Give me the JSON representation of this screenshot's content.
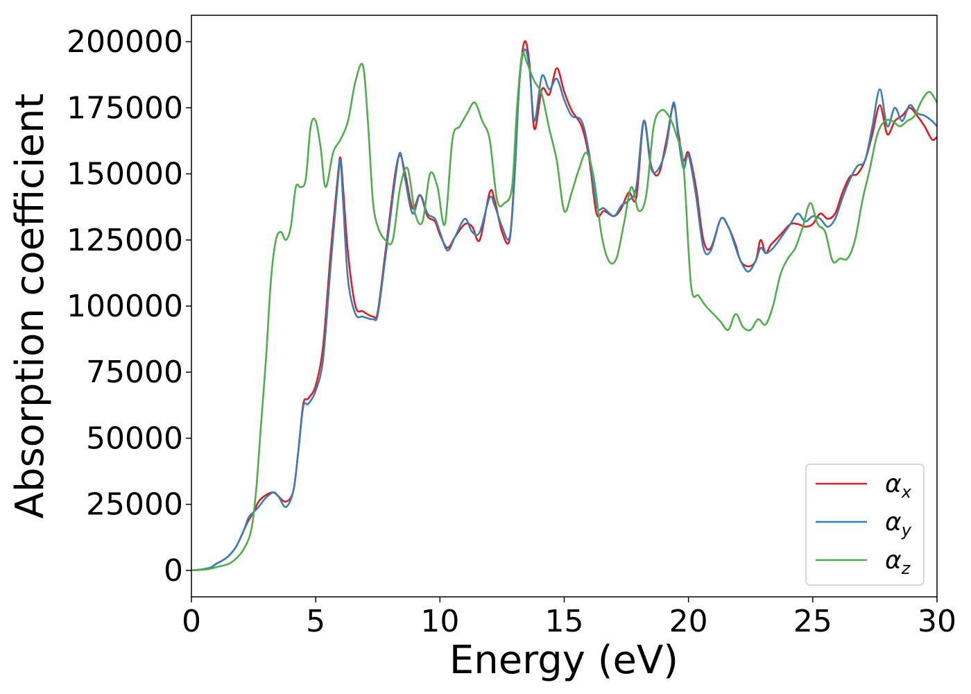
{
  "chart_data": {
    "type": "line",
    "title": "",
    "xlabel": "Energy (eV)",
    "ylabel": "Absorption coefficient",
    "xlim": [
      0,
      30
    ],
    "ylim": [
      -10000,
      210000
    ],
    "xticks": [
      0,
      5,
      10,
      15,
      20,
      25,
      30
    ],
    "xtick_labels": [
      "0",
      "5",
      "10",
      "15",
      "20",
      "25",
      "30"
    ],
    "yticks": [
      0,
      25000,
      50000,
      75000,
      100000,
      125000,
      150000,
      175000,
      200000
    ],
    "ytick_labels": [
      "0",
      "25000",
      "50000",
      "75000",
      "100000",
      "125000",
      "150000",
      "175000",
      "200000"
    ],
    "grid": false,
    "legend_position": "lower-right",
    "series": [
      {
        "name": "α_x",
        "label_main": "α",
        "label_sub": "x",
        "color": "#e41a1c",
        "x": [
          0,
          0.5,
          0.8,
          1.0,
          1.2,
          1.5,
          1.8,
          2.1,
          2.3,
          2.5,
          2.7,
          3.0,
          3.3,
          3.5,
          3.8,
          4.1,
          4.3,
          4.5,
          4.7,
          5.0,
          5.3,
          5.6,
          5.9,
          6.0,
          6.1,
          6.3,
          6.6,
          6.9,
          7.3,
          7.5,
          7.8,
          8.2,
          8.4,
          8.6,
          8.9,
          9.2,
          9.5,
          9.8,
          10.0,
          10.3,
          10.6,
          11.0,
          11.3,
          11.6,
          12.0,
          12.2,
          12.5,
          12.8,
          13.0,
          13.2,
          13.4,
          13.6,
          13.8,
          14.1,
          14.4,
          14.7,
          15.0,
          15.3,
          15.7,
          16.0,
          16.3,
          16.6,
          17.0,
          17.3,
          17.6,
          17.9,
          18.2,
          18.5,
          18.8,
          19.1,
          19.4,
          19.6,
          19.8,
          20.0,
          20.3,
          20.6,
          20.9,
          21.3,
          21.6,
          21.9,
          22.1,
          22.4,
          22.7,
          22.9,
          23.1,
          23.3,
          23.5,
          23.8,
          24.1,
          24.4,
          24.7,
          25.0,
          25.3,
          25.6,
          25.9,
          26.2,
          26.5,
          26.8,
          27.1,
          27.4,
          27.7,
          28.0,
          28.3,
          28.6,
          28.9,
          29.2,
          29.5,
          29.8,
          30.0
        ],
        "y": [
          0,
          500,
          1200,
          2500,
          3500,
          5500,
          9000,
          15000,
          19000,
          22000,
          26000,
          28500,
          29500,
          28000,
          26000,
          30000,
          45000,
          63000,
          65000,
          70000,
          85000,
          120000,
          150000,
          156000,
          145000,
          120000,
          100000,
          98000,
          96000,
          98000,
          120000,
          150000,
          157000,
          150000,
          137000,
          142000,
          134000,
          132000,
          127000,
          122000,
          126000,
          131000,
          130000,
          125000,
          143000,
          140000,
          128000,
          125000,
          150000,
          185000,
          200000,
          192000,
          167000,
          182000,
          180000,
          190000,
          181000,
          174000,
          168000,
          156000,
          135000,
          136000,
          134000,
          137000,
          143000,
          141000,
          170000,
          153000,
          150000,
          162000,
          176000,
          165000,
          155000,
          158000,
          145000,
          125000,
          122000,
          133000,
          130000,
          123000,
          117000,
          115000,
          117000,
          125000,
          120000,
          123000,
          125000,
          128000,
          131000,
          131000,
          130000,
          131000,
          135000,
          133000,
          135000,
          143000,
          149000,
          150000,
          155000,
          165000,
          176000,
          165000,
          170000,
          172000,
          175000,
          172000,
          168000,
          163000,
          164000
        ]
      },
      {
        "name": "α_y",
        "label_main": "α",
        "label_sub": "y",
        "color": "#377eb8",
        "x": [
          0,
          0.5,
          0.8,
          1.0,
          1.2,
          1.5,
          1.8,
          2.1,
          2.3,
          2.5,
          2.7,
          3.0,
          3.3,
          3.5,
          3.8,
          4.1,
          4.3,
          4.5,
          4.7,
          5.0,
          5.3,
          5.6,
          5.9,
          6.0,
          6.1,
          6.3,
          6.6,
          6.9,
          7.3,
          7.5,
          7.8,
          8.2,
          8.4,
          8.6,
          8.9,
          9.2,
          9.5,
          9.8,
          10.0,
          10.3,
          10.6,
          11.0,
          11.3,
          11.6,
          12.0,
          12.2,
          12.5,
          12.8,
          13.0,
          13.2,
          13.4,
          13.6,
          13.8,
          14.1,
          14.4,
          14.7,
          15.0,
          15.3,
          15.7,
          16.0,
          16.3,
          16.6,
          17.0,
          17.3,
          17.6,
          17.9,
          18.2,
          18.5,
          18.8,
          19.1,
          19.4,
          19.6,
          19.8,
          20.0,
          20.3,
          20.6,
          20.9,
          21.3,
          21.6,
          21.9,
          22.1,
          22.4,
          22.7,
          22.9,
          23.1,
          23.3,
          23.5,
          23.8,
          24.1,
          24.4,
          24.7,
          25.0,
          25.3,
          25.6,
          25.9,
          26.2,
          26.5,
          26.8,
          27.1,
          27.4,
          27.7,
          28.0,
          28.3,
          28.6,
          28.9,
          29.2,
          29.5,
          29.8,
          30.0
        ],
        "y": [
          0,
          500,
          1200,
          2500,
          3500,
          5500,
          9000,
          15000,
          20000,
          22000,
          24000,
          27500,
          29500,
          28000,
          24000,
          30000,
          45000,
          62000,
          63000,
          68000,
          80000,
          115000,
          148000,
          155000,
          140000,
          110000,
          97000,
          96000,
          95000,
          97000,
          118000,
          148000,
          158000,
          148000,
          135000,
          142000,
          135000,
          133000,
          128000,
          121000,
          126000,
          133000,
          128000,
          128000,
          141000,
          138000,
          130000,
          126000,
          148000,
          185000,
          197000,
          190000,
          170000,
          187000,
          182000,
          186000,
          178000,
          172000,
          170000,
          158000,
          138000,
          137000,
          134000,
          138000,
          140000,
          145000,
          170000,
          152000,
          152000,
          160000,
          177000,
          163000,
          152000,
          157000,
          142000,
          122000,
          121000,
          133000,
          130000,
          122000,
          117000,
          113000,
          117000,
          122000,
          120000,
          121000,
          123000,
          127000,
          131000,
          135000,
          132000,
          134000,
          133000,
          130000,
          133000,
          141000,
          148000,
          153000,
          155000,
          168000,
          182000,
          168000,
          175000,
          170000,
          176000,
          173000,
          172000,
          170000,
          168000
        ]
      },
      {
        "name": "α_z",
        "label_main": "α",
        "label_sub": "z",
        "color": "#4daf4a",
        "x": [
          0,
          0.5,
          0.8,
          1.0,
          1.5,
          1.8,
          2.1,
          2.4,
          2.6,
          2.8,
          3.0,
          3.2,
          3.4,
          3.6,
          3.8,
          4.0,
          4.2,
          4.4,
          4.6,
          4.8,
          5.0,
          5.2,
          5.4,
          5.7,
          6.0,
          6.3,
          6.6,
          6.9,
          7.1,
          7.3,
          7.5,
          7.8,
          8.1,
          8.4,
          8.7,
          9.0,
          9.3,
          9.6,
          9.9,
          10.2,
          10.5,
          10.8,
          11.1,
          11.4,
          11.7,
          12.0,
          12.3,
          12.6,
          12.9,
          13.1,
          13.3,
          13.5,
          13.8,
          14.1,
          14.4,
          14.7,
          15.0,
          15.3,
          15.6,
          15.9,
          16.2,
          16.5,
          16.8,
          17.1,
          17.4,
          17.7,
          18.0,
          18.3,
          18.6,
          18.9,
          19.2,
          19.5,
          19.8,
          20.1,
          20.4,
          20.7,
          21.0,
          21.3,
          21.6,
          21.9,
          22.2,
          22.5,
          22.8,
          23.1,
          23.4,
          23.7,
          24.0,
          24.3,
          24.6,
          24.9,
          25.2,
          25.5,
          25.8,
          26.1,
          26.4,
          26.7,
          27.0,
          27.3,
          27.6,
          27.9,
          28.2,
          28.5,
          28.8,
          29.1,
          29.4,
          29.7,
          30.0
        ],
        "y": [
          0,
          300,
          700,
          1200,
          2500,
          4500,
          8000,
          15000,
          30000,
          55000,
          80000,
          110000,
          125000,
          128000,
          125000,
          130000,
          145000,
          145000,
          148000,
          168000,
          170000,
          160000,
          145000,
          158000,
          163000,
          170000,
          185000,
          191000,
          170000,
          140000,
          130000,
          125000,
          125000,
          145000,
          152000,
          135000,
          132000,
          150000,
          145000,
          131000,
          163000,
          168000,
          173000,
          177000,
          170000,
          163000,
          140000,
          139000,
          145000,
          175000,
          195000,
          192000,
          185000,
          180000,
          167000,
          155000,
          136000,
          143000,
          152000,
          158000,
          148000,
          127000,
          117000,
          118000,
          131000,
          145000,
          136000,
          142000,
          168000,
          174000,
          172000,
          165000,
          153000,
          108000,
          104000,
          100000,
          97000,
          94000,
          91000,
          97000,
          92000,
          91000,
          95000,
          93000,
          100000,
          112000,
          118000,
          122000,
          130000,
          139000,
          131000,
          128000,
          117000,
          118000,
          118000,
          125000,
          140000,
          152000,
          165000,
          170000,
          170000,
          168000,
          170000,
          172000,
          178000,
          181000,
          177000
        ]
      }
    ]
  }
}
